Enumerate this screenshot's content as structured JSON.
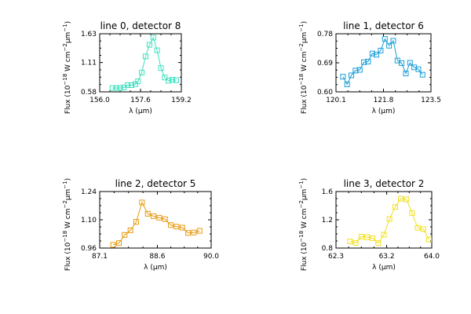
{
  "chart_data": [
    {
      "type": "line",
      "title": "line 0, detector 8",
      "xlabel": "λ (μm)",
      "ylabel_prefix": "Flux (10",
      "ylabel_exp1": "−18",
      "ylabel_mid": " W cm",
      "ylabel_exp2": "−2",
      "ylabel_mu": "μm",
      "ylabel_exp3": "−1",
      "ylabel_suffix": ")",
      "xlim": [
        156.0,
        159.2
      ],
      "ylim": [
        0.58,
        1.63
      ],
      "xticks": [
        156.0,
        157.6,
        159.2
      ],
      "xtick_labels": [
        "156.0",
        "157.6",
        "159.2"
      ],
      "yticks": [
        0.58,
        1.11,
        1.63
      ],
      "ytick_labels": [
        "0.58",
        "1.11",
        "1.63"
      ],
      "color": "#40e0c0",
      "marker": "open-square",
      "series": [
        {
          "x": [
            156.5,
            156.65,
            156.8,
            156.95,
            157.1,
            157.25,
            157.4,
            157.5,
            157.65,
            157.8,
            157.95,
            158.1,
            158.25,
            158.4,
            158.55,
            158.7,
            158.85,
            159.0
          ],
          "y": [
            0.65,
            0.65,
            0.65,
            0.66,
            0.7,
            0.7,
            0.72,
            0.77,
            0.93,
            1.22,
            1.43,
            1.56,
            1.33,
            1.01,
            0.84,
            0.78,
            0.8,
            0.79
          ]
        }
      ]
    },
    {
      "type": "line",
      "title": "line 1, detector 6",
      "xlabel": "λ (μm)",
      "ylabel_prefix": "Flux (10",
      "ylabel_exp1": "−18",
      "ylabel_mid": " W cm",
      "ylabel_exp2": "−2",
      "ylabel_mu": "μm",
      "ylabel_exp3": "−1",
      "ylabel_suffix": ")",
      "xlim": [
        120.1,
        123.5
      ],
      "ylim": [
        0.6,
        0.78
      ],
      "xticks": [
        120.1,
        121.8,
        123.5
      ],
      "xtick_labels": [
        "120.1",
        "121.8",
        "123.5"
      ],
      "yticks": [
        0.6,
        0.69,
        0.78
      ],
      "ytick_labels": [
        "0.60",
        "0.69",
        "0.78"
      ],
      "color": "#1a9ed8",
      "marker": "open-square",
      "series": [
        {
          "x": [
            120.35,
            120.5,
            120.65,
            120.8,
            120.95,
            121.1,
            121.25,
            121.4,
            121.55,
            121.7,
            121.85,
            122.0,
            122.15,
            122.3,
            122.45,
            122.6,
            122.75,
            122.9,
            123.05,
            123.2
          ],
          "y": [
            0.647,
            0.623,
            0.651,
            0.666,
            0.668,
            0.692,
            0.694,
            0.719,
            0.715,
            0.728,
            0.764,
            0.743,
            0.758,
            0.697,
            0.689,
            0.657,
            0.69,
            0.676,
            0.67,
            0.653
          ]
        }
      ]
    },
    {
      "type": "line",
      "title": "line 2, detector 5",
      "xlabel": "λ (μm)",
      "ylabel_prefix": "Flux (10",
      "ylabel_exp1": "−18",
      "ylabel_mid": " W cm",
      "ylabel_exp2": "−2",
      "ylabel_mu": "μm",
      "ylabel_exp3": "−1",
      "ylabel_suffix": ")",
      "xlim": [
        87.1,
        90.0
      ],
      "ylim": [
        0.96,
        1.24
      ],
      "xticks": [
        87.1,
        88.6,
        90.0
      ],
      "xtick_labels": [
        "87.1",
        "88.6",
        "90.0"
      ],
      "yticks": [
        0.96,
        1.1,
        1.24
      ],
      "ytick_labels": [
        "0.96",
        "1.10",
        "1.24"
      ],
      "color": "#e89a10",
      "marker": "open-square",
      "series": [
        {
          "x": [
            87.45,
            87.6,
            87.75,
            87.9,
            88.05,
            88.2,
            88.35,
            88.5,
            88.65,
            88.8,
            88.95,
            89.1,
            89.25,
            89.4,
            89.55,
            89.7
          ],
          "y": [
            0.976,
            0.985,
            1.025,
            1.048,
            1.09,
            1.186,
            1.13,
            1.118,
            1.11,
            1.103,
            1.074,
            1.066,
            1.061,
            1.035,
            1.037,
            1.045
          ]
        }
      ]
    },
    {
      "type": "line",
      "title": "line 3, detector 2",
      "xlabel": "λ (μm)",
      "ylabel_prefix": "Flux (10",
      "ylabel_exp1": "−18",
      "ylabel_mid": " W cm",
      "ylabel_exp2": "−2",
      "ylabel_mu": "μm",
      "ylabel_exp3": "−1",
      "ylabel_suffix": ")",
      "xlim": [
        62.3,
        64.0
      ],
      "ylim": [
        0.8,
        1.6
      ],
      "xticks": [
        62.3,
        63.2,
        64.0
      ],
      "xtick_labels": [
        "62.3",
        "63.2",
        "64.0"
      ],
      "yticks": [
        0.8,
        1.2,
        1.6
      ],
      "ytick_labels": [
        "0.8",
        "1.2",
        "1.6"
      ],
      "color": "#f0e020",
      "marker": "open-square",
      "series": [
        {
          "x": [
            62.55,
            62.65,
            62.75,
            62.85,
            62.95,
            63.05,
            63.15,
            63.25,
            63.35,
            63.45,
            63.55,
            63.65,
            63.75,
            63.85,
            63.95
          ],
          "y": [
            0.893,
            0.873,
            0.962,
            0.954,
            0.94,
            0.87,
            0.989,
            1.211,
            1.381,
            1.499,
            1.489,
            1.296,
            1.087,
            1.069,
            0.92
          ]
        }
      ]
    }
  ]
}
